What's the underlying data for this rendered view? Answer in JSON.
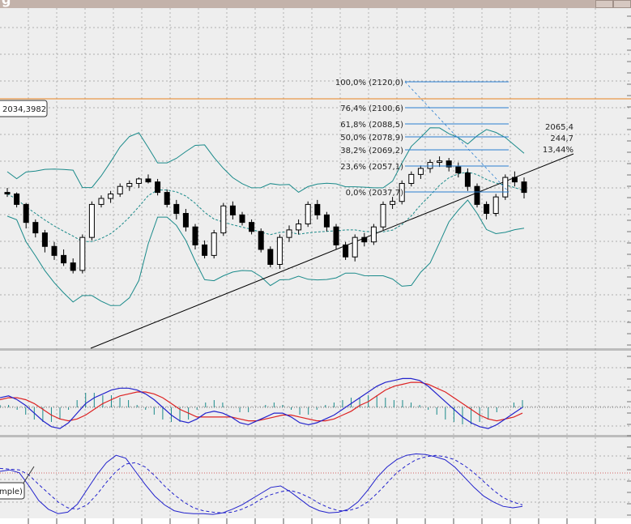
{
  "title_fragment": "g",
  "colors": {
    "background": "#eeeeee",
    "grid": "#9a9a9a",
    "bollinger": "#1a8a8a",
    "bull_candle": "#ffffff",
    "bear_candle": "#000000",
    "fib_line": "#2a7fd0",
    "price_line": "#e8821e",
    "macd_line": "#2222cc",
    "signal_line": "#dd2222",
    "histogram": "#1a8a8a",
    "trendline": "#000000"
  },
  "price_label": "2034,3982",
  "stoch_label": "mple)",
  "readout": {
    "price": "2065,4",
    "points": "244,7",
    "percent": "13,44%"
  },
  "fib_levels": [
    {
      "label": "100,0%  (2120,0)"
    },
    {
      "label": "76,4%  (2100,6)"
    },
    {
      "label": "61,8%  (2088,5)"
    },
    {
      "label": "50,0%  (2078,9)"
    },
    {
      "label": "38,2%  (2069,2)"
    },
    {
      "label": "23,6%  (2057,1)"
    },
    {
      "label": "0,0%  (2037,7)"
    }
  ],
  "chart_data": [
    {
      "type": "candlestick",
      "title": "",
      "candles": [
        [
          2048,
          2051,
          2045,
          2047
        ],
        [
          2047,
          2048,
          2038,
          2040
        ],
        [
          2040,
          2041,
          2024,
          2028
        ],
        [
          2028,
          2030,
          2018,
          2021
        ],
        [
          2021,
          2023,
          2008,
          2012
        ],
        [
          2012,
          2015,
          2003,
          2006
        ],
        [
          2006,
          2010,
          1999,
          2001
        ],
        [
          2001,
          2004,
          1994,
          1996
        ],
        [
          1996,
          2020,
          1994,
          2018
        ],
        [
          2018,
          2042,
          2016,
          2040
        ],
        [
          2040,
          2046,
          2038,
          2044
        ],
        [
          2044,
          2049,
          2041,
          2047
        ],
        [
          2047,
          2054,
          2045,
          2052
        ],
        [
          2052,
          2056,
          2049,
          2054
        ],
        [
          2054,
          2058,
          2051,
          2057
        ],
        [
          2057,
          2060,
          2054,
          2055
        ],
        [
          2055,
          2057,
          2046,
          2048
        ],
        [
          2048,
          2050,
          2038,
          2040
        ],
        [
          2040,
          2043,
          2030,
          2034
        ],
        [
          2034,
          2037,
          2022,
          2025
        ],
        [
          2025,
          2027,
          2010,
          2013
        ],
        [
          2013,
          2016,
          2004,
          2006
        ],
        [
          2006,
          2023,
          2004,
          2021
        ],
        [
          2021,
          2041,
          2019,
          2039
        ],
        [
          2039,
          2042,
          2030,
          2033
        ],
        [
          2033,
          2035,
          2026,
          2028
        ],
        [
          2028,
          2030,
          2020,
          2022
        ],
        [
          2022,
          2024,
          2008,
          2010
        ],
        [
          2010,
          2012,
          1998,
          2000
        ],
        [
          2000,
          2020,
          1997,
          2018
        ],
        [
          2018,
          2026,
          2015,
          2023
        ],
        [
          2023,
          2030,
          2020,
          2027
        ],
        [
          2027,
          2042,
          2025,
          2040
        ],
        [
          2040,
          2043,
          2030,
          2033
        ],
        [
          2033,
          2035,
          2022,
          2025
        ],
        [
          2025,
          2027,
          2010,
          2013
        ],
        [
          2013,
          2015,
          2003,
          2005
        ],
        [
          2005,
          2020,
          2002,
          2018
        ],
        [
          2018,
          2021,
          2012,
          2015
        ],
        [
          2015,
          2027,
          2013,
          2025
        ],
        [
          2025,
          2042,
          2023,
          2040
        ],
        [
          2040,
          2045,
          2037,
          2042
        ],
        [
          2042,
          2056,
          2040,
          2054
        ],
        [
          2054,
          2062,
          2052,
          2060
        ],
        [
          2060,
          2066,
          2057,
          2064
        ],
        [
          2064,
          2070,
          2061,
          2068
        ],
        [
          2068,
          2072,
          2065,
          2069
        ],
        [
          2069,
          2071,
          2062,
          2065
        ],
        [
          2065,
          2068,
          2058,
          2061
        ],
        [
          2061,
          2064,
          2049,
          2052
        ],
        [
          2052,
          2054,
          2038,
          2040
        ],
        [
          2040,
          2042,
          2030,
          2034
        ],
        [
          2034,
          2047,
          2032,
          2045
        ],
        [
          2045,
          2060,
          2043,
          2058
        ],
        [
          2058,
          2062,
          2052,
          2055
        ],
        [
          2055,
          2058,
          2044,
          2048
        ]
      ],
      "bollinger": {
        "period": 20
      },
      "hline": 2060,
      "ylim": [
        1990,
        2125
      ]
    },
    {
      "type": "line",
      "title": "",
      "series": [
        {
          "values": [
            0.5,
            0.6,
            0.4,
            0.1,
            -0.3,
            -0.7,
            -1.0,
            -1.1,
            -0.8,
            -0.3,
            0.2,
            0.5,
            0.7,
            0.9,
            1.0,
            1.0,
            0.9,
            0.7,
            0.4,
            0.0,
            -0.4,
            -0.7,
            -0.8,
            -0.6,
            -0.3,
            -0.2,
            -0.3,
            -0.5,
            -0.8,
            -0.9,
            -0.7,
            -0.5,
            -0.3,
            -0.3,
            -0.5,
            -0.8,
            -0.9,
            -0.8,
            -0.6,
            -0.4,
            -0.1,
            0.2,
            0.5,
            0.8,
            1.1,
            1.3,
            1.4,
            1.5,
            1.5,
            1.4,
            1.1,
            0.7,
            0.3,
            -0.1,
            -0.5,
            -0.8,
            -1.0,
            -1.1,
            -0.9,
            -0.6,
            -0.3,
            0.0
          ]
        },
        {
          "values": [
            0.4,
            0.5,
            0.5,
            0.4,
            0.2,
            -0.1,
            -0.4,
            -0.6,
            -0.7,
            -0.6,
            -0.4,
            -0.1,
            0.2,
            0.4,
            0.6,
            0.7,
            0.8,
            0.8,
            0.7,
            0.5,
            0.2,
            -0.1,
            -0.3,
            -0.5,
            -0.5,
            -0.5,
            -0.5,
            -0.5,
            -0.6,
            -0.7,
            -0.7,
            -0.6,
            -0.5,
            -0.4,
            -0.4,
            -0.5,
            -0.6,
            -0.7,
            -0.7,
            -0.6,
            -0.4,
            -0.2,
            0.1,
            0.3,
            0.6,
            0.9,
            1.1,
            1.2,
            1.3,
            1.3,
            1.2,
            1.0,
            0.8,
            0.5,
            0.2,
            -0.1,
            -0.4,
            -0.6,
            -0.7,
            -0.6,
            -0.5,
            -0.3
          ]
        }
      ],
      "ylim": [
        -1.6,
        1.6
      ]
    },
    {
      "type": "line",
      "title": "",
      "series": [
        {
          "values": [
            60,
            62,
            58,
            40,
            20,
            8,
            2,
            4,
            15,
            35,
            55,
            72,
            82,
            78,
            60,
            42,
            26,
            14,
            6,
            3,
            2,
            2,
            1,
            3,
            8,
            14,
            22,
            30,
            38,
            40,
            32,
            22,
            12,
            6,
            3,
            4,
            8,
            18,
            34,
            52,
            66,
            76,
            82,
            84,
            83,
            80,
            76,
            66,
            52,
            38,
            26,
            18,
            12,
            10,
            12
          ]
        },
        {
          "values": [
            64,
            63,
            62,
            55,
            42,
            30,
            18,
            10,
            8,
            14,
            28,
            45,
            60,
            70,
            72,
            66,
            54,
            40,
            28,
            18,
            10,
            6,
            4,
            3,
            4,
            8,
            14,
            22,
            28,
            32,
            34,
            30,
            24,
            16,
            10,
            6,
            6,
            10,
            18,
            30,
            44,
            58,
            68,
            76,
            80,
            82,
            80,
            76,
            68,
            58,
            46,
            34,
            24,
            18,
            14
          ]
        }
      ],
      "ylim": [
        0,
        100
      ]
    }
  ]
}
